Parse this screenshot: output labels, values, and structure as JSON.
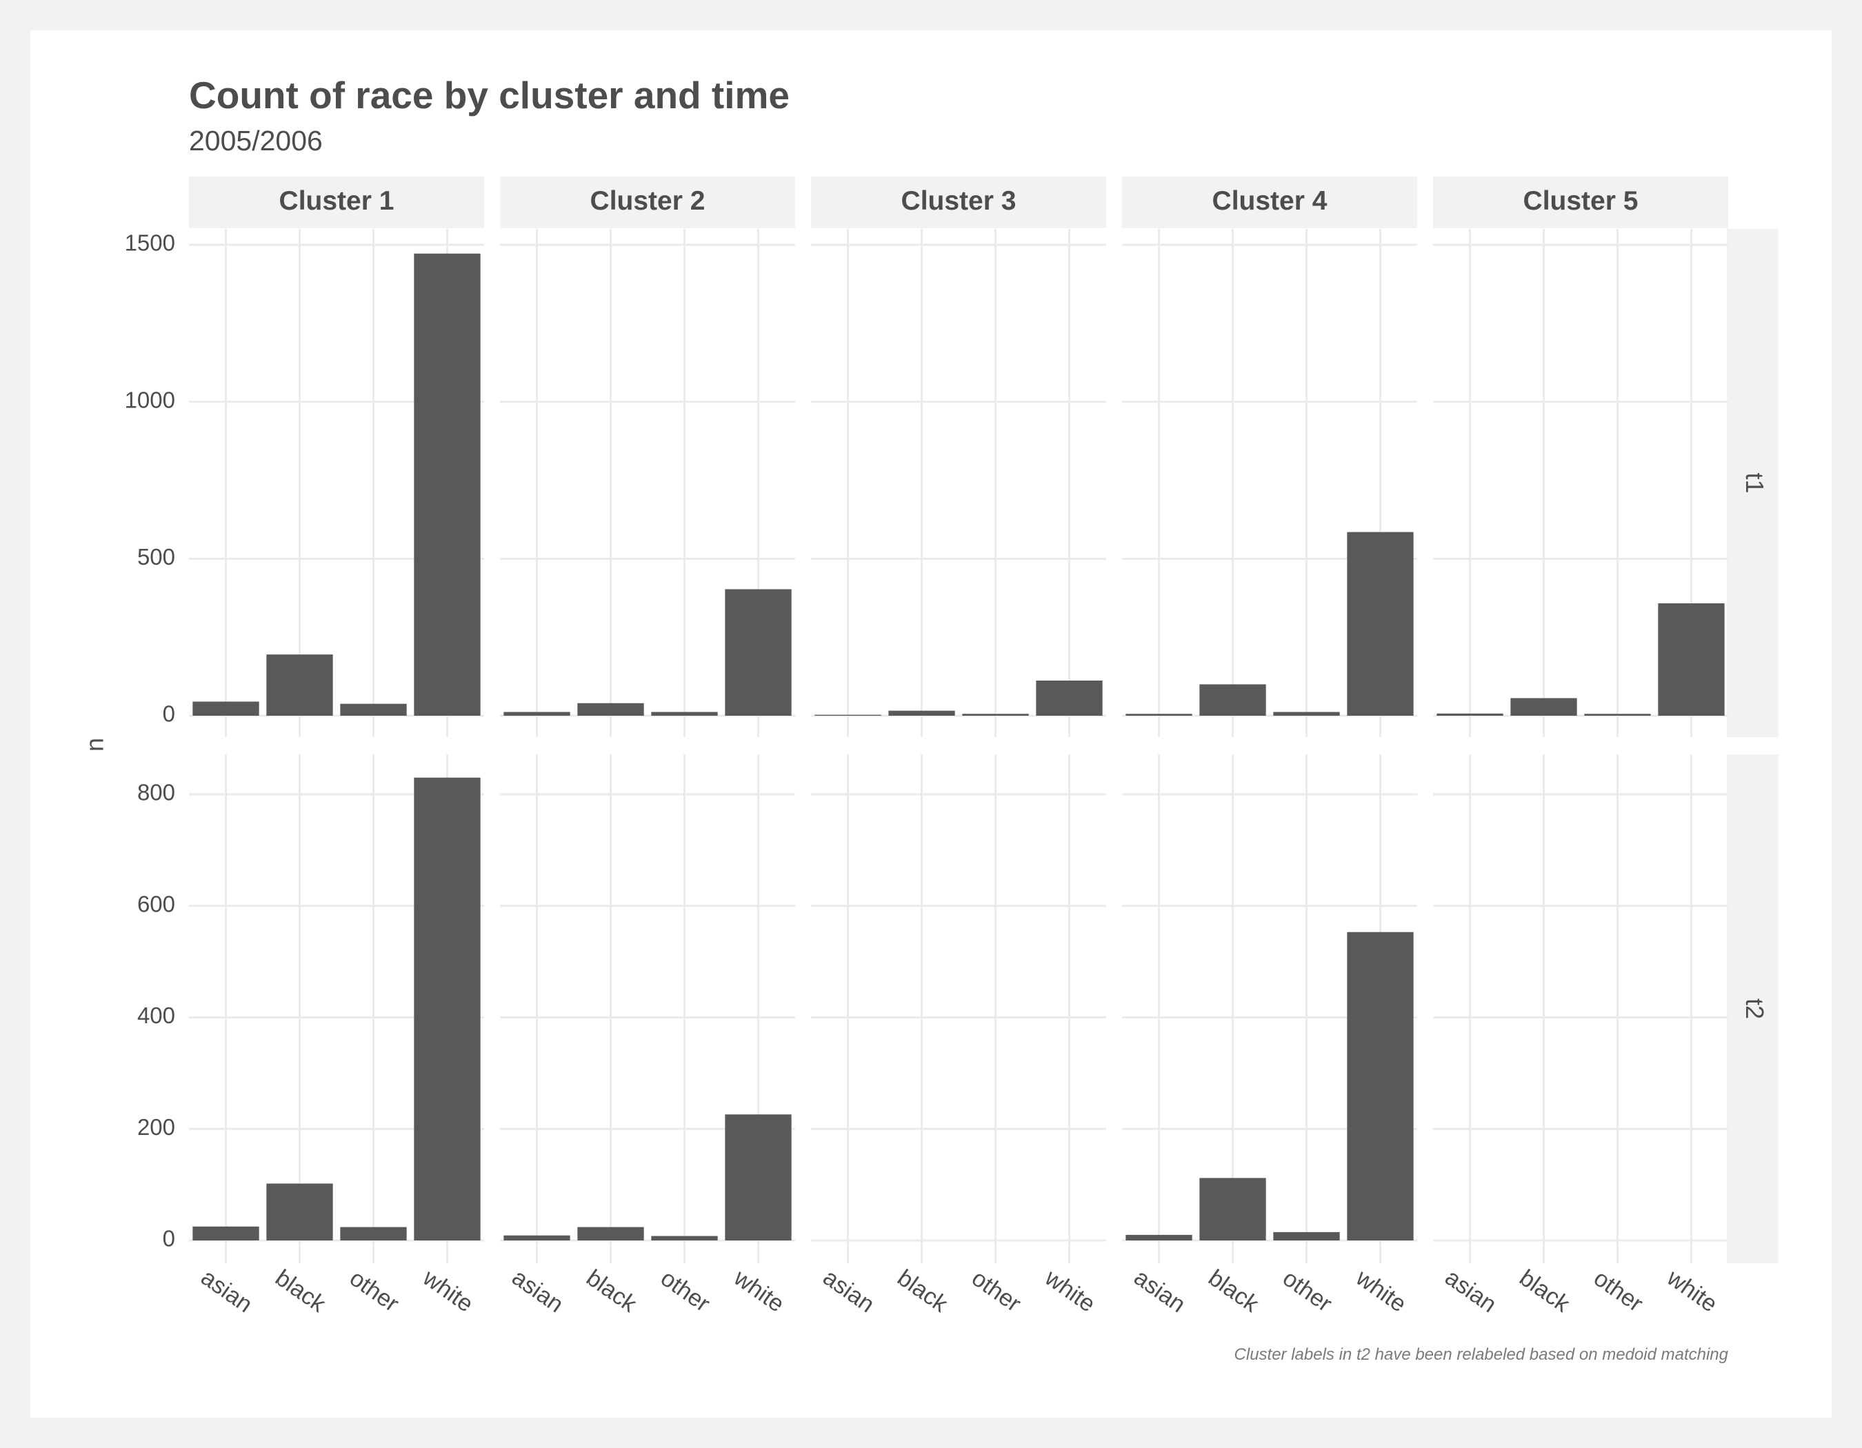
{
  "chart_data": {
    "type": "bar",
    "title": "Count of race by cluster and time",
    "subtitle": "2005/2006",
    "caption": "Cluster labels in t2 have been relabeled based on medoid matching",
    "xlabel": "",
    "ylabel": "n",
    "categories": [
      "asian",
      "black",
      "other",
      "white"
    ],
    "facet_columns": [
      "Cluster 1",
      "Cluster 2",
      "Cluster 3",
      "Cluster 4",
      "Cluster 5"
    ],
    "facet_rows": [
      {
        "label": "t1",
        "ylim": [
          0,
          1500
        ],
        "yticks": [
          0,
          500,
          1000,
          1500
        ],
        "tick_labels": [
          "0",
          "500",
          "1000",
          "1500"
        ],
        "panels": [
          {
            "cluster": "Cluster 1",
            "values": [
              45,
              195,
              38,
              1472
            ]
          },
          {
            "cluster": "Cluster 2",
            "values": [
              12,
              40,
              12,
              403
            ]
          },
          {
            "cluster": "Cluster 3",
            "values": [
              3,
              16,
              6,
              112
            ]
          },
          {
            "cluster": "Cluster 4",
            "values": [
              6,
              100,
              12,
              585
            ]
          },
          {
            "cluster": "Cluster 5",
            "values": [
              7,
              56,
              6,
              358
            ]
          }
        ]
      },
      {
        "label": "t2",
        "ylim": [
          0,
          830
        ],
        "yticks": [
          0,
          200,
          400,
          600,
          800
        ],
        "tick_labels": [
          "0",
          "200",
          "400",
          "600",
          "800"
        ],
        "panels": [
          {
            "cluster": "Cluster 1",
            "values": [
              25,
              102,
              24,
              830
            ]
          },
          {
            "cluster": "Cluster 2",
            "values": [
              9,
              24,
              8,
              226
            ]
          },
          {
            "cluster": "Cluster 3",
            "values": [
              0,
              0,
              0,
              0
            ]
          },
          {
            "cluster": "Cluster 4",
            "values": [
              10,
              112,
              15,
              553
            ]
          },
          {
            "cluster": "Cluster 5",
            "values": [
              0,
              0,
              0,
              0
            ]
          }
        ]
      }
    ],
    "grid": true,
    "legend": "none",
    "colors": {
      "bar": "#595959",
      "grid": "#ebebeb",
      "strip": "#f2f2f2",
      "text": "#4d4d4d",
      "axis_text": "#4d4d4d"
    }
  }
}
